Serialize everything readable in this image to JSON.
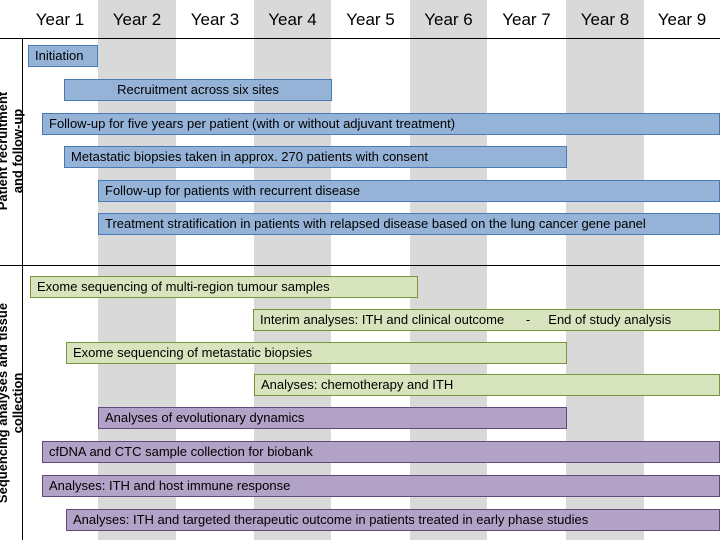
{
  "years": [
    "Year 1",
    "Year 2",
    "Year 3",
    "Year 4",
    "Year 5",
    "Year 6",
    "Year 7",
    "Year 8",
    "Year 9"
  ],
  "sections": {
    "recruitment": "Patient recruitment and follow-up",
    "sequencing": "Sequencing analyses and tissue collection"
  },
  "colors": {
    "blue_fill": "#95b3d7",
    "blue_border": "#4a7ab5",
    "green_fill": "#d7e4bd",
    "green_border": "#77933c",
    "purple_fill": "#b3a2c7",
    "purple_border": "#604a7b",
    "band": "#d9d9d9"
  },
  "tasks": [
    {
      "label": "Initiation",
      "group": "recruitment",
      "color": "blue"
    },
    {
      "label": "Recruitment across six sites",
      "group": "recruitment",
      "color": "blue"
    },
    {
      "label": "Follow-up for five years per patient (with or without adjuvant treatment)",
      "group": "recruitment",
      "color": "blue"
    },
    {
      "label": "Metastatic biopsies taken in approx. 270 patients with consent",
      "group": "recruitment",
      "color": "blue"
    },
    {
      "label": "Follow-up  for patients with recurrent disease",
      "group": "recruitment",
      "color": "blue"
    },
    {
      "label": "Treatment stratification in patients with relapsed disease based on the lung cancer gene panel",
      "group": "recruitment",
      "color": "blue"
    },
    {
      "label": "Exome sequencing of multi-region tumour samples",
      "group": "sequencing",
      "color": "green"
    },
    {
      "label": "Interim analyses: ITH and clinical outcome      -     End of study analysis",
      "group": "sequencing",
      "color": "green"
    },
    {
      "label": "Exome sequencing of metastatic biopsies",
      "group": "sequencing",
      "color": "green"
    },
    {
      "label": "Analyses: chemotherapy and ITH",
      "group": "sequencing",
      "color": "green"
    },
    {
      "label": "Analyses of evolutionary dynamics",
      "group": "sequencing",
      "color": "purple"
    },
    {
      "label": "cfDNA and CTC sample collection for biobank",
      "group": "sequencing",
      "color": "purple"
    },
    {
      "label": "Analyses: ITH and host immune response",
      "group": "sequencing",
      "color": "purple"
    },
    {
      "label": "Analyses: ITH and targeted therapeutic outcome in patients treated in early phase studies",
      "group": "sequencing",
      "color": "purple"
    }
  ]
}
